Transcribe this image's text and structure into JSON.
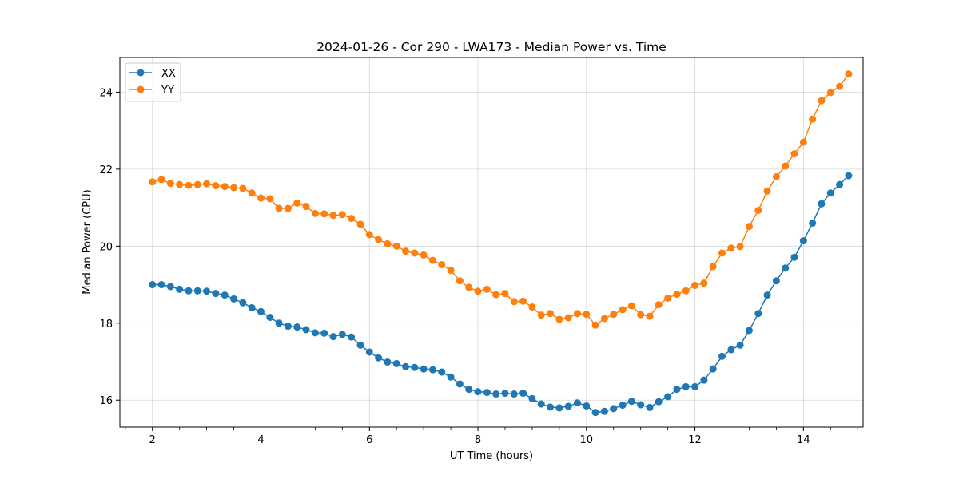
{
  "chart_data": {
    "type": "line",
    "title": "2024-01-26 - Cor 290 - LWA173 - Median Power vs. Time",
    "xlabel": "UT Time (hours)",
    "ylabel": "Median Power (CPU)",
    "xlim": [
      1.4,
      15.1
    ],
    "ylim": [
      15.3,
      24.9
    ],
    "xticks": [
      2,
      4,
      6,
      8,
      10,
      12,
      14
    ],
    "yticks": [
      16,
      18,
      20,
      22,
      24
    ],
    "xminor_step": 0.5,
    "grid": true,
    "legend_position": "top-left",
    "x": [
      2.0,
      2.167,
      2.333,
      2.5,
      2.667,
      2.833,
      3.0,
      3.167,
      3.333,
      3.5,
      3.667,
      3.833,
      4.0,
      4.167,
      4.333,
      4.5,
      4.667,
      4.833,
      5.0,
      5.167,
      5.333,
      5.5,
      5.667,
      5.833,
      6.0,
      6.167,
      6.333,
      6.5,
      6.667,
      6.833,
      7.0,
      7.167,
      7.333,
      7.5,
      7.667,
      7.833,
      8.0,
      8.167,
      8.333,
      8.5,
      8.667,
      8.833,
      9.0,
      9.167,
      9.333,
      9.5,
      9.667,
      9.833,
      10.0,
      10.167,
      10.333,
      10.5,
      10.667,
      10.833,
      11.0,
      11.167,
      11.333,
      11.5,
      11.667,
      11.833,
      12.0,
      12.167,
      12.333,
      12.5,
      12.667,
      12.833,
      13.0,
      13.167,
      13.333,
      13.5,
      13.667,
      13.833,
      14.0,
      14.167,
      14.333,
      14.5,
      14.667,
      14.833
    ],
    "series": [
      {
        "name": "XX",
        "color": "#1f77b4",
        "values": [
          19.0,
          19.0,
          18.95,
          18.88,
          18.84,
          18.84,
          18.83,
          18.77,
          18.73,
          18.63,
          18.53,
          18.4,
          18.3,
          18.15,
          18.0,
          17.92,
          17.9,
          17.83,
          17.75,
          17.74,
          17.65,
          17.71,
          17.64,
          17.43,
          17.25,
          17.1,
          16.99,
          16.95,
          16.87,
          16.85,
          16.81,
          16.79,
          16.73,
          16.6,
          16.42,
          16.28,
          16.22,
          16.2,
          16.16,
          16.18,
          16.16,
          16.18,
          16.04,
          15.9,
          15.82,
          15.8,
          15.84,
          15.93,
          15.85,
          15.68,
          15.71,
          15.78,
          15.87,
          15.97,
          15.88,
          15.81,
          15.96,
          16.09,
          16.28,
          16.35,
          16.35,
          16.52,
          16.81,
          17.14,
          17.31,
          17.43,
          17.81,
          18.25,
          18.73,
          19.1,
          19.43,
          19.71,
          20.14,
          20.6,
          21.1,
          21.38,
          21.6,
          21.83
        ]
      },
      {
        "name": "YY",
        "color": "#ff7f0e",
        "values": [
          21.67,
          21.73,
          21.63,
          21.6,
          21.58,
          21.6,
          21.62,
          21.57,
          21.55,
          21.52,
          21.5,
          21.38,
          21.25,
          21.23,
          20.98,
          20.98,
          21.12,
          21.03,
          20.85,
          20.84,
          20.8,
          20.82,
          20.72,
          20.57,
          20.3,
          20.17,
          20.06,
          20.0,
          19.87,
          19.82,
          19.77,
          19.63,
          19.52,
          19.37,
          19.1,
          18.93,
          18.83,
          18.88,
          18.74,
          18.77,
          18.56,
          18.57,
          18.42,
          18.21,
          18.25,
          18.1,
          18.14,
          18.25,
          18.23,
          17.95,
          18.12,
          18.23,
          18.35,
          18.45,
          18.22,
          18.18,
          18.48,
          18.65,
          18.75,
          18.84,
          18.98,
          19.04,
          19.47,
          19.82,
          19.95,
          19.99,
          20.51,
          20.93,
          21.43,
          21.8,
          22.08,
          22.4,
          22.7,
          23.3,
          23.78,
          23.99,
          24.15,
          24.47
        ]
      }
    ]
  }
}
